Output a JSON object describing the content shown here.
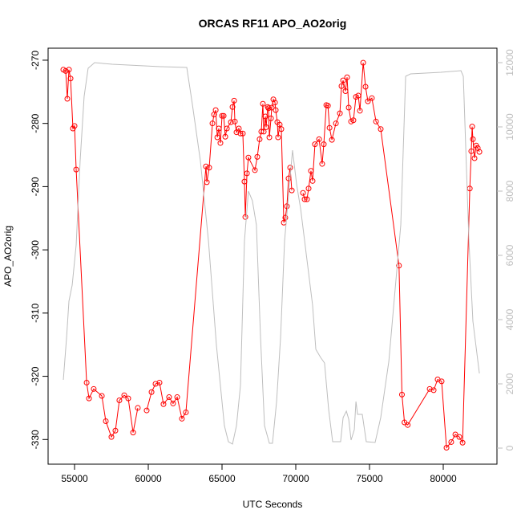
{
  "chart_data": {
    "type": "line",
    "title": "ORCAS RF11 APO_AO2orig",
    "x_label": "UTC Seconds",
    "y_label": "APO_AO2orig",
    "xlim": [
      53206,
      83641
    ],
    "xticks": [
      55000,
      60000,
      65000,
      70000,
      75000,
      80000
    ],
    "ylim": [
      -333.9,
      -268.1
    ],
    "yticks": [
      -330,
      -320,
      -310,
      -300,
      -290,
      -280,
      -270
    ],
    "y2lim": [
      -500,
      12450
    ],
    "y2ticks": [
      0,
      2000,
      4000,
      6000,
      8000,
      10000,
      12000
    ],
    "y2_color": "#bebebe",
    "series": [
      {
        "color": "#ff0000",
        "marker": "circle",
        "x": [
          54240,
          54400,
          54510,
          54620,
          54730,
          54890,
          55000,
          55110,
          55820,
          55980,
          56300,
          56850,
          57120,
          57500,
          57770,
          58040,
          58370,
          58640,
          58970,
          59290,
          59600,
          59890,
          60220,
          60490,
          60760,
          61030,
          61410,
          61680,
          61960,
          62280,
          62550,
          63910,
          63970,
          64130,
          64350,
          64460,
          64570,
          64680,
          64780,
          64890,
          65000,
          65110,
          65220,
          65330,
          65600,
          65710,
          65820,
          65870,
          65980,
          66140,
          66250,
          66410,
          66520,
          66580,
          66690,
          66790,
          67230,
          67390,
          67550,
          67660,
          67770,
          67830,
          67940,
          67990,
          68100,
          68150,
          68210,
          68320,
          68370,
          68480,
          68590,
          68640,
          68750,
          68800,
          68910,
          69020,
          69190,
          69290,
          69400,
          69510,
          69620,
          69730,
          70100,
          70490,
          70600,
          70760,
          70870,
          71030,
          71140,
          71300,
          71580,
          71790,
          71900,
          72070,
          72180,
          72290,
          72450,
          72720,
          72990,
          73100,
          73210,
          73370,
          73480,
          73590,
          73750,
          73910,
          74080,
          74240,
          74350,
          74570,
          74730,
          74890,
          75160,
          75440,
          75760,
          77000,
          77200,
          77370,
          77590,
          79080,
          79350,
          79620,
          79890,
          80220,
          80540,
          80820,
          81090,
          81310,
          81800,
          81900,
          81960,
          82010,
          82120,
          82230,
          82340,
          82450
        ],
        "values": [
          -271.5,
          -271.7,
          -276.1,
          -271.5,
          -272.9,
          -280.8,
          -280.4,
          -287.3,
          -321,
          -323.5,
          -322,
          -323.1,
          -327.1,
          -329.6,
          -328.6,
          -323.8,
          -323,
          -323.5,
          -328.9,
          -325,
          null,
          -325.4,
          -322.5,
          -321.2,
          -321,
          -324.4,
          -323.3,
          -324.3,
          -323.3,
          -326.7,
          -325.7,
          -286.8,
          -289.3,
          -287,
          -280,
          -278.6,
          -277.9,
          -282.2,
          -280.8,
          -283.1,
          -278.8,
          -278.8,
          -282.1,
          -280.8,
          -279.8,
          -277.4,
          -276.4,
          -279.7,
          -281.4,
          -280.8,
          -281.6,
          -281.6,
          -289.2,
          -294.8,
          -287.9,
          -285.4,
          -287.4,
          -285.3,
          -282.5,
          -281.3,
          -276.9,
          -281.3,
          -278.9,
          -280.6,
          -277.4,
          -277.6,
          -282.2,
          -279.2,
          -277.5,
          -276.2,
          -276.7,
          -277.9,
          -279.8,
          -282.2,
          -280.2,
          -280.9,
          -295.7,
          -294.9,
          -293.1,
          -288.7,
          -287,
          -290.6,
          null,
          -291,
          -292,
          -292,
          -290.3,
          -287.5,
          -289.1,
          -283.3,
          -282.5,
          -286.4,
          -283.3,
          -277.1,
          -277.2,
          -280.7,
          -282.6,
          -280,
          -278.4,
          -274.1,
          -273.2,
          -274.9,
          -272.7,
          -277.5,
          -279.7,
          -279.5,
          -275.8,
          -275.6,
          -278,
          -270.4,
          -274.2,
          -276.5,
          -276,
          -279.7,
          -280.9,
          -302.5,
          -322.9,
          -327.3,
          -327.7,
          -322,
          -322.2,
          -320.5,
          -320.8,
          -331.3,
          -330.4,
          -329.2,
          -329.6,
          -330.5,
          -290.3,
          -284.4,
          -280.5,
          -282.5,
          -285.5,
          -283.5,
          -283.9,
          -284.5
        ]
      },
      {
        "color": "#bebebe",
        "axis": "y2",
        "x": [
          54240,
          54460,
          54620,
          54840,
          55110,
          55380,
          55650,
          55920,
          56360,
          57550,
          60820,
          62610,
          62990,
          63530,
          64080,
          64620,
          65160,
          65430,
          65710,
          65980,
          66250,
          66520,
          66790,
          67060,
          67330,
          67610,
          67880,
          68210,
          68420,
          68700,
          68970,
          69240,
          69780,
          70060,
          70330,
          70600,
          70870,
          71140,
          71360,
          71680,
          71950,
          72230,
          72500,
          73040,
          73210,
          73430,
          73590,
          73750,
          73970,
          74080,
          74190,
          74510,
          74780,
          75380,
          75760,
          76310,
          77120,
          77450,
          77780,
          79840,
          81200,
          81360,
          81740,
          82010,
          82450
        ],
        "values": [
          2125,
          3450,
          4575,
          5075,
          6325,
          8950,
          10950,
          11825,
          12000,
          11950,
          11875,
          11850,
          10700,
          8950,
          6450,
          3200,
          700,
          200,
          125,
          700,
          1950,
          6450,
          8000,
          7700,
          6950,
          3450,
          700,
          150,
          150,
          1450,
          3450,
          6450,
          9275,
          8200,
          7450,
          6450,
          5450,
          4450,
          3075,
          2825,
          2650,
          1200,
          200,
          200,
          950,
          1150,
          900,
          250,
          575,
          1450,
          1050,
          1050,
          200,
          175,
          950,
          2700,
          6950,
          11575,
          11650,
          11700,
          11750,
          11575,
          6450,
          3950,
          2325
        ]
      }
    ]
  }
}
